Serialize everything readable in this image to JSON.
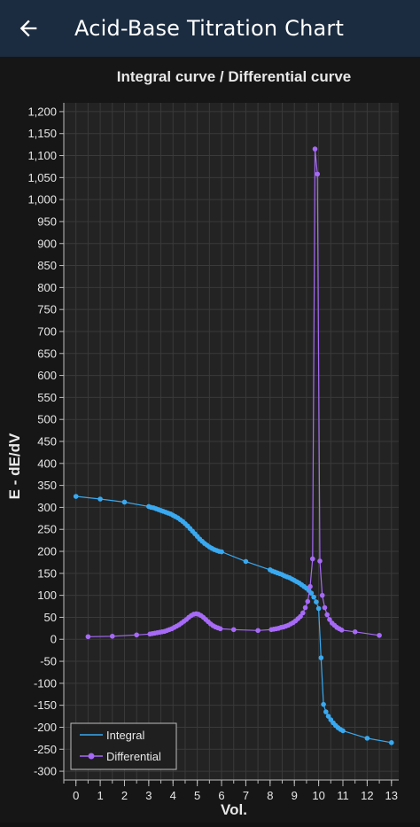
{
  "app": {
    "title": "Acid-Base Titration Chart",
    "back_icon": "arrow-left-icon"
  },
  "colors": {
    "appbar": "#1b2c40",
    "background": "#161616",
    "plot_area": "#232323",
    "integral": "#39a9f0",
    "differential": "#a66af6",
    "text": "#e8e8e8"
  },
  "chart_data": {
    "type": "line",
    "title": "Integral curve / Differential curve",
    "xlabel": "Vol.",
    "ylabel": "E - dE/dV",
    "xlim": [
      -0.5,
      13.3
    ],
    "ylim": [
      -320,
      1220
    ],
    "x_ticks": [
      0,
      1,
      2,
      3,
      4,
      5,
      6,
      7,
      8,
      9,
      10,
      11,
      12,
      13
    ],
    "y_ticks": [
      -300,
      -250,
      -200,
      -150,
      -100,
      -50,
      0,
      50,
      100,
      150,
      200,
      250,
      300,
      350,
      400,
      450,
      500,
      550,
      600,
      650,
      700,
      750,
      800,
      850,
      900,
      950,
      1000,
      1050,
      1100,
      1150,
      1200
    ],
    "y_tick_labels": [
      "-300",
      "-250",
      "-200",
      "-150",
      "-100",
      "-50",
      "0",
      "50",
      "100",
      "150",
      "200",
      "250",
      "300",
      "350",
      "400",
      "450",
      "500",
      "550",
      "600",
      "650",
      "700",
      "750",
      "800",
      "850",
      "900",
      "950",
      "1,000",
      "1,050",
      "1,100",
      "1,150",
      "1,200"
    ],
    "grid": true,
    "legend_position": "bottom-left",
    "series": [
      {
        "name": "Integral",
        "x": [
          0,
          1,
          2,
          3,
          3.1,
          3.2,
          3.3,
          3.4,
          3.5,
          3.6,
          3.7,
          3.8,
          3.9,
          4.0,
          4.1,
          4.2,
          4.3,
          4.4,
          4.5,
          4.6,
          4.7,
          4.8,
          4.9,
          5.0,
          5.1,
          5.2,
          5.3,
          5.4,
          5.5,
          5.6,
          5.7,
          5.8,
          5.9,
          6.0,
          7,
          8,
          8.1,
          8.2,
          8.3,
          8.4,
          8.5,
          8.6,
          8.7,
          8.8,
          8.9,
          9.0,
          9.1,
          9.2,
          9.3,
          9.4,
          9.5,
          9.6,
          9.7,
          9.8,
          9.9,
          10.0,
          10.1,
          10.2,
          10.3,
          10.4,
          10.5,
          10.6,
          10.7,
          10.8,
          10.9,
          11,
          12,
          13
        ],
        "y": [
          325,
          319,
          312,
          302,
          300,
          299,
          297,
          295,
          293,
          291,
          289,
          287,
          285,
          282,
          279,
          276,
          272,
          268,
          263,
          258,
          252,
          246,
          240,
          234,
          228,
          223,
          218,
          214,
          210,
          207,
          204,
          202,
          200,
          199,
          177,
          158,
          155,
          153,
          151,
          149,
          147,
          144,
          142,
          140,
          137,
          134,
          131,
          128,
          124,
          120,
          116,
          111,
          105,
          96,
          85,
          70,
          -42,
          -148,
          -165,
          -175,
          -183,
          -190,
          -196,
          -201,
          -205,
          -208,
          -225,
          -235
        ]
      },
      {
        "name": "Differential",
        "x": [
          0.5,
          1.5,
          2.5,
          3.05,
          3.15,
          3.25,
          3.35,
          3.45,
          3.55,
          3.65,
          3.75,
          3.85,
          3.95,
          4.05,
          4.15,
          4.25,
          4.35,
          4.45,
          4.55,
          4.65,
          4.75,
          4.85,
          4.95,
          5.05,
          5.15,
          5.25,
          5.35,
          5.45,
          5.55,
          5.65,
          5.75,
          5.85,
          5.95,
          6.5,
          7.5,
          8.05,
          8.15,
          8.25,
          8.35,
          8.45,
          8.55,
          8.65,
          8.75,
          8.85,
          8.95,
          9.05,
          9.15,
          9.25,
          9.35,
          9.45,
          9.55,
          9.65,
          9.75,
          9.85,
          9.95,
          10.05,
          10.15,
          10.25,
          10.35,
          10.45,
          10.55,
          10.65,
          10.75,
          10.85,
          10.95,
          11.5,
          12.5
        ],
        "y": [
          6,
          7,
          10,
          12,
          13,
          14,
          15,
          16,
          17,
          18,
          20,
          22,
          24,
          27,
          30,
          33,
          37,
          41,
          45,
          50,
          54,
          57,
          58,
          57,
          54,
          50,
          45,
          40,
          35,
          31,
          28,
          26,
          24,
          22,
          20,
          22,
          23,
          24,
          25,
          27,
          28,
          30,
          32,
          35,
          38,
          42,
          47,
          52,
          60,
          72,
          86,
          120,
          183,
          1115,
          1058,
          178,
          100,
          72,
          56,
          45,
          37,
          32,
          27,
          24,
          21,
          17,
          9
        ]
      }
    ]
  }
}
